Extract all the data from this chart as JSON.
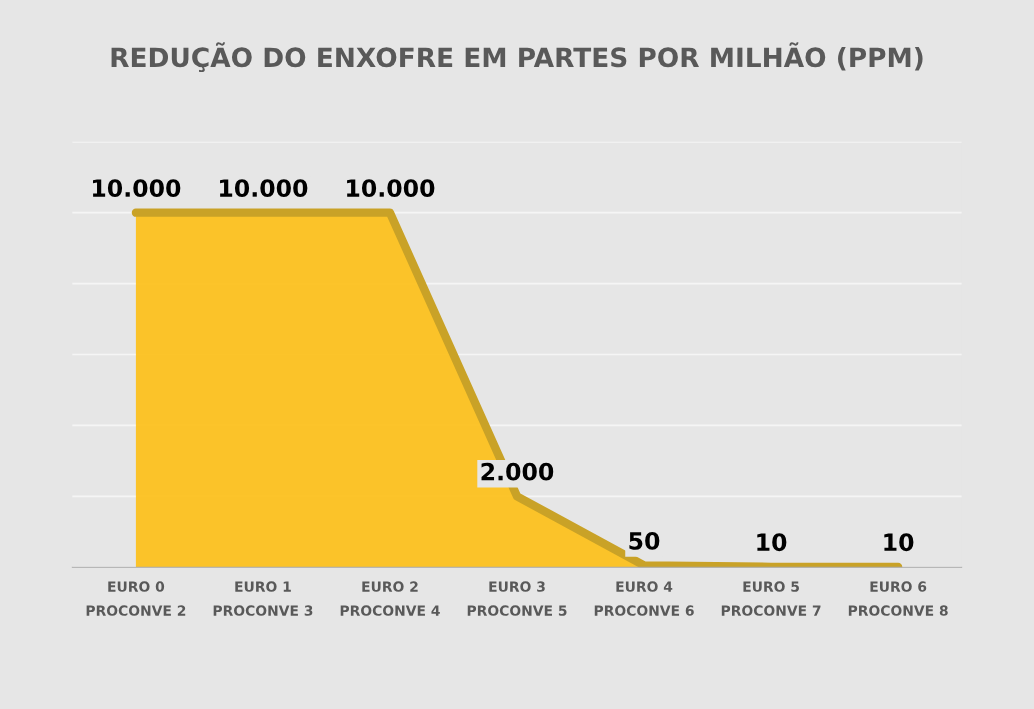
{
  "chart_data": {
    "type": "area",
    "title": "REDUÇÃO DO ENXOFRE EM PARTES POR MILHÃO (PPM)",
    "categories": [
      "EURO 0\nPROCONVE 2",
      "EURO 1\nPROCONVE 3",
      "EURO 2\nPROCONVE 4",
      "EURO 3\nPROCONVE 5",
      "EURO 4\nPROCONVE 6",
      "EURO 5\nPROCONVE 7",
      "EURO 6\nPROCONVE 8"
    ],
    "values": [
      10000,
      10000,
      10000,
      2000,
      50,
      10,
      10
    ],
    "value_labels": [
      "10.000",
      "10.000",
      "10.000",
      "2.000",
      "50",
      "10",
      "10"
    ],
    "color": "#fcc11f",
    "grid": "y",
    "tick_labels": "x"
  }
}
